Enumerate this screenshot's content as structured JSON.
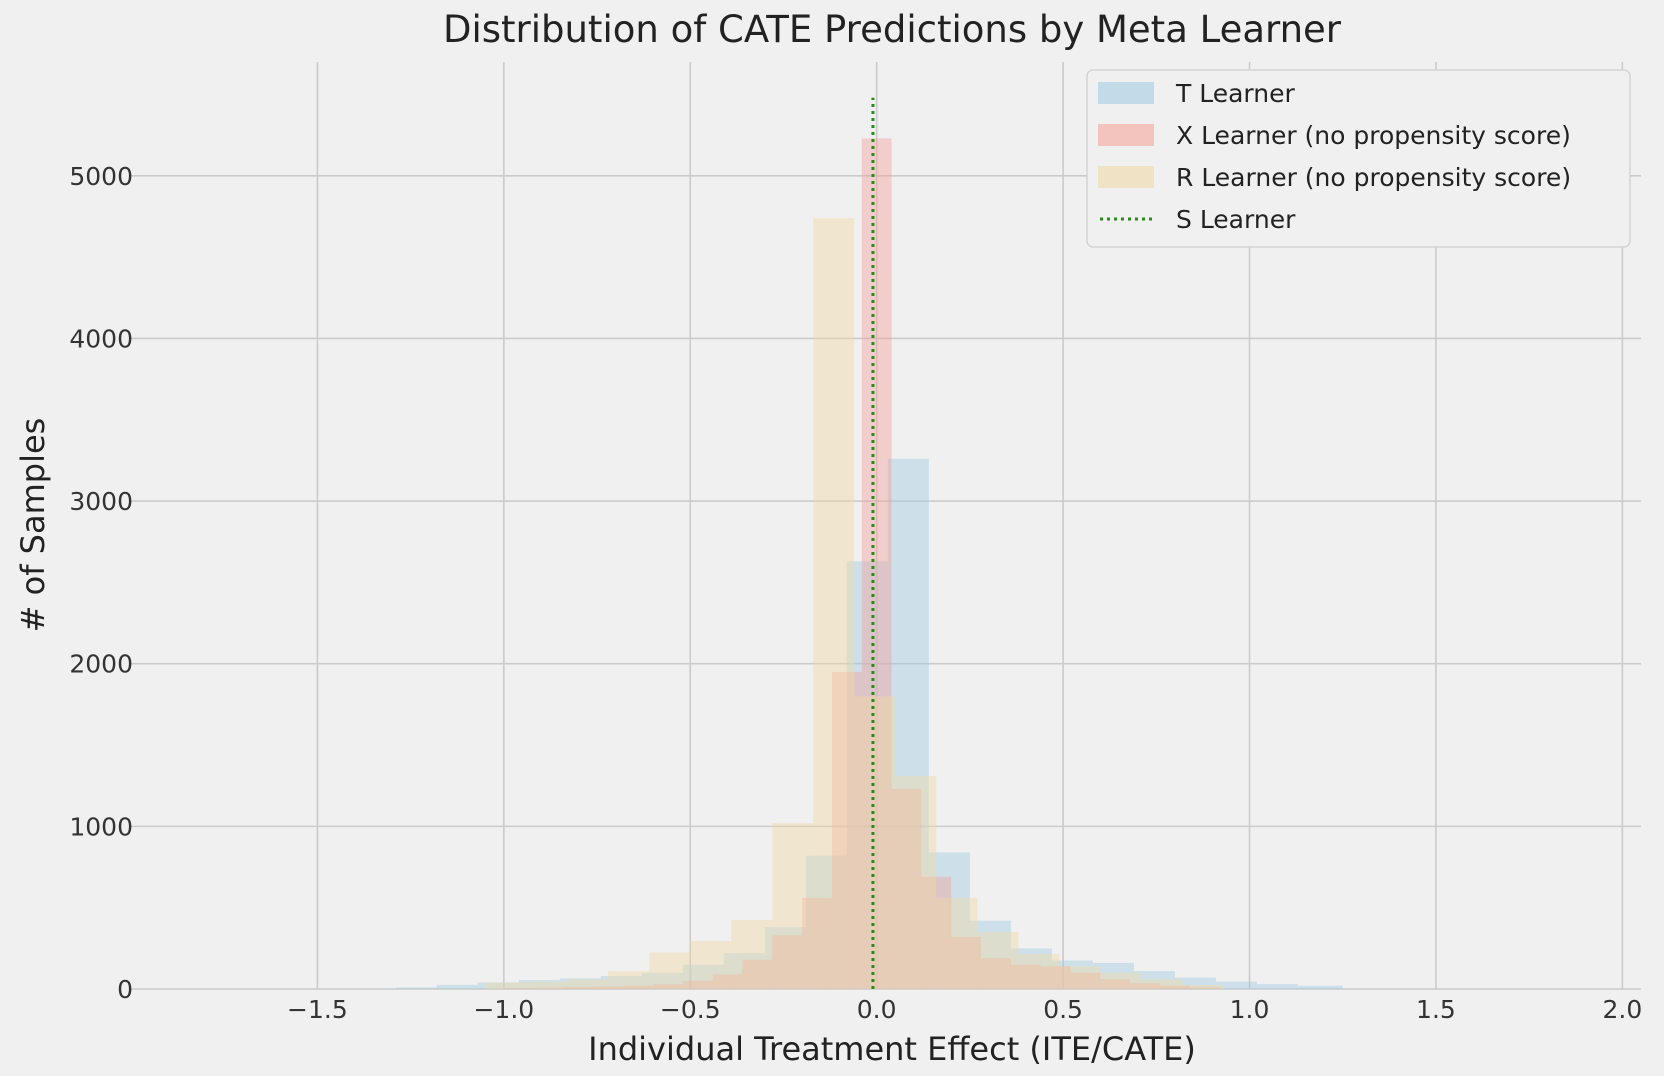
{
  "chart_data": {
    "type": "histogram",
    "title": "Distribution of CATE Predictions by Meta Learner",
    "xlabel": "Individual Treatment Effect (ITE/CATE)",
    "ylabel": "# of Samples",
    "xlim": [
      -2.0,
      2.05
    ],
    "ylim": [
      0,
      5700
    ],
    "x_ticks": [
      -1.5,
      -1.0,
      -0.5,
      0.0,
      0.5,
      1.0,
      1.5,
      2.0
    ],
    "x_tick_labels": [
      "−1.5",
      "−1.0",
      "−0.5",
      "0.0",
      "0.5",
      "1.0",
      "1.5",
      "2.0"
    ],
    "y_ticks": [
      0,
      1000,
      2000,
      3000,
      4000,
      5000
    ],
    "y_tick_labels": [
      "0",
      "1000",
      "2000",
      "3000",
      "4000",
      "5000"
    ],
    "grid": true,
    "legend_position": "top-right",
    "series": [
      {
        "name": "T Learner",
        "color": "#9ecae1",
        "opacity": 0.42,
        "bin_edges": [
          -1.29,
          -1.18,
          -1.07,
          -0.96,
          -0.85,
          -0.74,
          -0.63,
          -0.52,
          -0.41,
          -0.3,
          -0.19,
          -0.08,
          0.03,
          0.14,
          0.25,
          0.36,
          0.47,
          0.58,
          0.69,
          0.8,
          0.91,
          1.02,
          1.13,
          1.25
        ],
        "counts": [
          10,
          25,
          40,
          55,
          65,
          80,
          100,
          150,
          220,
          380,
          820,
          2630,
          3260,
          840,
          420,
          250,
          175,
          160,
          110,
          70,
          45,
          30,
          20
        ]
      },
      {
        "name": "X Learner (no propensity score)",
        "color": "#f4a098",
        "opacity": 0.42,
        "bin_edges": [
          -1.0,
          -0.92,
          -0.84,
          -0.76,
          -0.68,
          -0.6,
          -0.52,
          -0.44,
          -0.36,
          -0.28,
          -0.2,
          -0.12,
          -0.04,
          0.04,
          0.12,
          0.2,
          0.28,
          0.36,
          0.44,
          0.52,
          0.6,
          0.68,
          0.76,
          0.84,
          0.92
        ],
        "counts": [
          5,
          8,
          12,
          15,
          20,
          30,
          50,
          90,
          180,
          330,
          560,
          1950,
          5230,
          1230,
          690,
          320,
          190,
          150,
          140,
          100,
          60,
          35,
          20,
          10
        ]
      },
      {
        "name": "R Learner (no propensity score)",
        "color": "#f0d9a4",
        "opacity": 0.42,
        "bin_edges": [
          -1.05,
          -0.94,
          -0.83,
          -0.72,
          -0.61,
          -0.5,
          -0.39,
          -0.28,
          -0.17,
          -0.06,
          0.05,
          0.16,
          0.27,
          0.38,
          0.49,
          0.6,
          0.71,
          0.82,
          0.93
        ],
        "counts": [
          40,
          45,
          60,
          110,
          225,
          295,
          425,
          1020,
          4740,
          1800,
          1310,
          560,
          350,
          215,
          140,
          100,
          60,
          25
        ]
      }
    ],
    "vline": {
      "name": "S Learner",
      "x": -0.01,
      "y_range": [
        0,
        5480
      ],
      "color": "#2a8a1a",
      "style": "dotted"
    }
  }
}
